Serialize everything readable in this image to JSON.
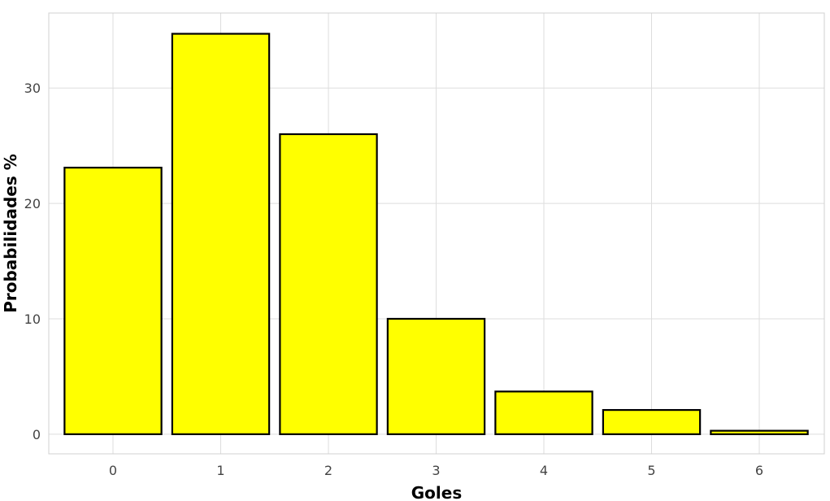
{
  "chart_data": {
    "type": "bar",
    "categories": [
      "0",
      "1",
      "2",
      "3",
      "4",
      "5",
      "6"
    ],
    "values": [
      23.1,
      34.7,
      26.0,
      10.0,
      3.7,
      2.1,
      0.3
    ],
    "xlabel": "Goles",
    "ylabel": "Probabilidades %",
    "ylim": [
      -1.7,
      36.5
    ],
    "yticks": [
      0,
      10,
      20,
      30
    ],
    "grid": true,
    "legend": "none",
    "colors": {
      "bar_fill": "#ffff00",
      "bar_stroke": "#000000",
      "grid": "#dddddd"
    }
  }
}
